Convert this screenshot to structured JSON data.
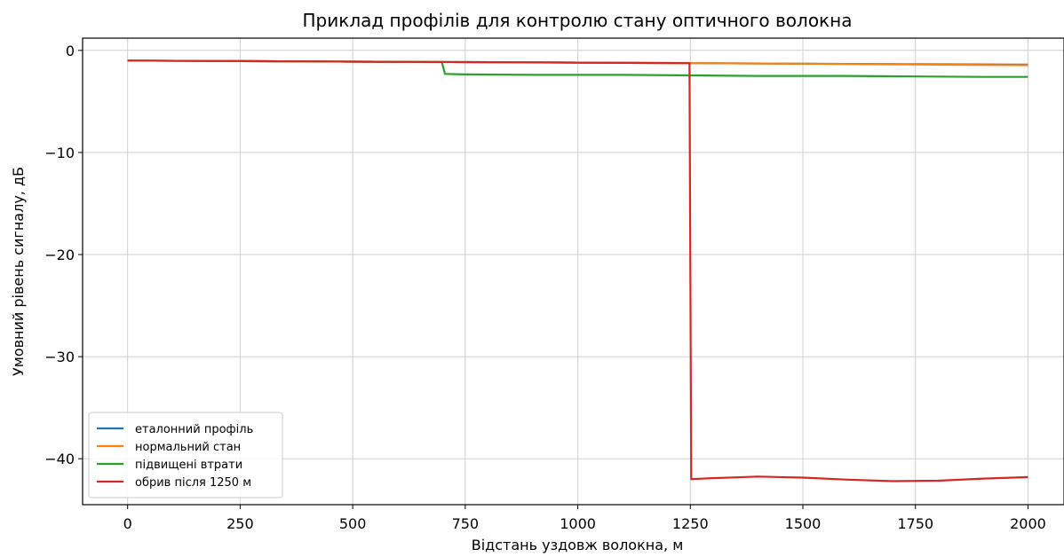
{
  "chart_data": {
    "type": "line",
    "title": "Приклад профілів для контролю стану оптичного волокна",
    "xlabel": "Відстань уздовж волокна, м",
    "ylabel": "Умовний рівень сигналу, дБ",
    "xlim": [
      -100,
      2080
    ],
    "ylim": [
      -44.5,
      1.2
    ],
    "xticks": [
      0,
      250,
      500,
      750,
      1000,
      1250,
      1500,
      1750,
      2000
    ],
    "xtick_labels": [
      "0",
      "250",
      "500",
      "750",
      "1000",
      "1250",
      "1500",
      "1750",
      "2000"
    ],
    "yticks": [
      0,
      -10,
      -20,
      -30,
      -40
    ],
    "ytick_labels": [
      "0",
      "−10",
      "−20",
      "−30",
      "−40"
    ],
    "grid": true,
    "legend": "lower-left",
    "series": [
      {
        "name": "еталонний профіль",
        "color": "#1f77b4",
        "x": [
          0,
          250,
          500,
          750,
          1000,
          1250,
          1500,
          1750,
          2000
        ],
        "y": [
          -1.0,
          -1.05,
          -1.1,
          -1.15,
          -1.2,
          -1.25,
          -1.3,
          -1.35,
          -1.4
        ]
      },
      {
        "name": "нормальний стан",
        "color": "#ff7f0e",
        "x": [
          0,
          250,
          500,
          750,
          1000,
          1250,
          1500,
          1750,
          2000
        ],
        "y": [
          -1.0,
          -1.05,
          -1.1,
          -1.15,
          -1.2,
          -1.25,
          -1.3,
          -1.38,
          -1.45
        ]
      },
      {
        "name": "підвищені втрати",
        "color": "#2ca02c",
        "x": [
          0,
          250,
          500,
          698,
          705,
          750,
          900,
          1100,
          1250,
          1400,
          1600,
          1750,
          1900,
          2000
        ],
        "y": [
          -1.0,
          -1.05,
          -1.1,
          -1.15,
          -2.3,
          -2.35,
          -2.4,
          -2.4,
          -2.45,
          -2.5,
          -2.5,
          -2.55,
          -2.6,
          -2.6
        ]
      },
      {
        "name": "обрив після 1250 м",
        "color": "#d62728",
        "x": [
          0,
          250,
          500,
          750,
          1000,
          1248,
          1252,
          1300,
          1400,
          1500,
          1600,
          1700,
          1800,
          1900,
          2000
        ],
        "y": [
          -1.0,
          -1.05,
          -1.1,
          -1.15,
          -1.2,
          -1.25,
          -42.0,
          -41.9,
          -41.75,
          -41.85,
          -42.05,
          -42.2,
          -42.15,
          -41.95,
          -41.8
        ]
      }
    ]
  }
}
